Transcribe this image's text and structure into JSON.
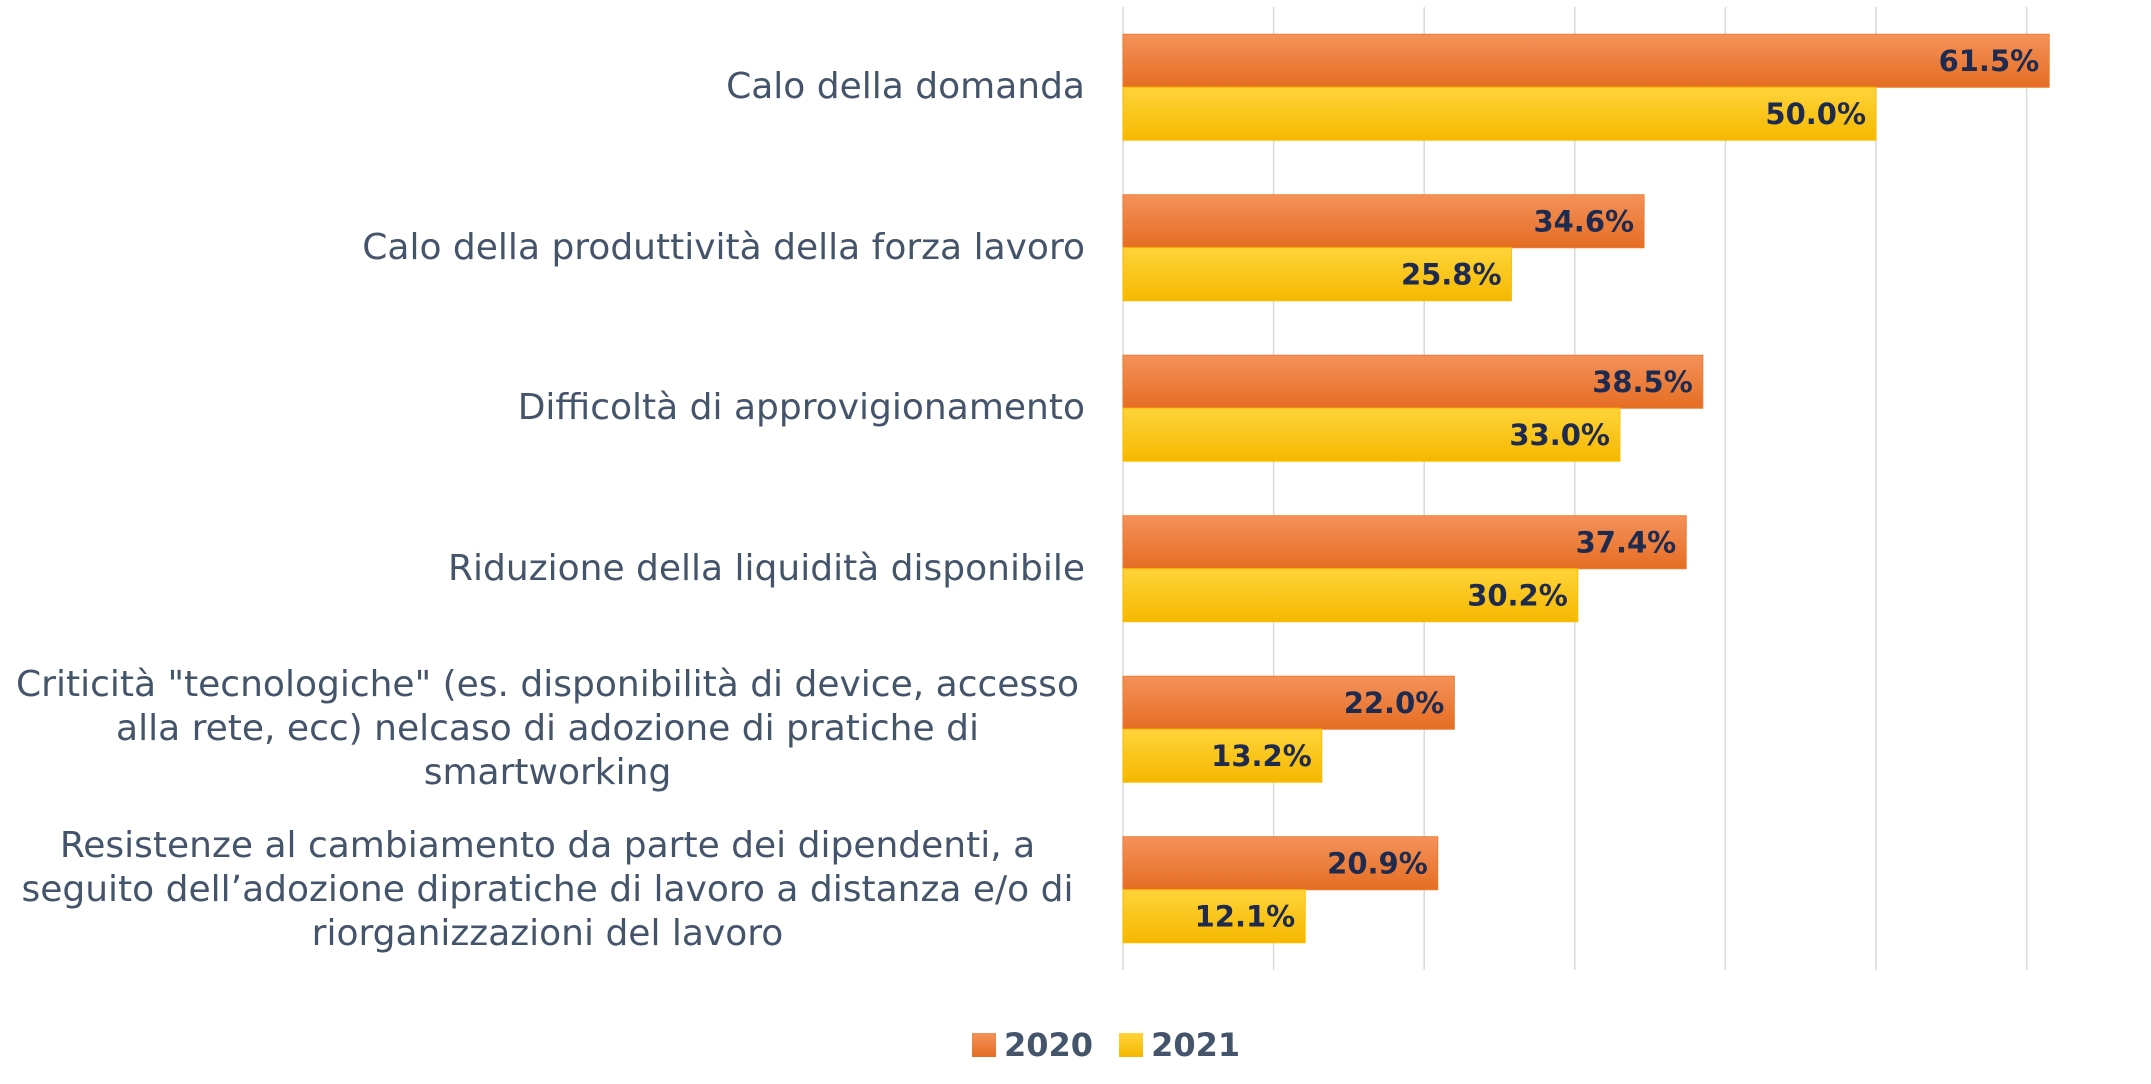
{
  "chart_data": {
    "type": "bar",
    "orientation": "horizontal",
    "categories": [
      "Calo della domanda",
      "Calo della produttività della forza lavoro",
      "Difficoltà di approvigionamento",
      "Riduzione della liquidità disponibile",
      "Criticità \"tecnologiche\" (es. disponibilità di device, accesso alla rete, ecc) nelcaso di adozione di pratiche di smartworking",
      "Resistenze al cambiamento da parte dei dipendenti, a seguito dell’adozione dipratiche di lavoro a distanza e/o di riorganizzazioni del lavoro"
    ],
    "series": [
      {
        "name": "2020",
        "color": "#ed7d31",
        "values": [
          61.5,
          34.6,
          38.5,
          37.4,
          22.0,
          20.9
        ],
        "value_labels": [
          "61.5%",
          "34.6%",
          "38.5%",
          "37.4%",
          "22.0%",
          "20.9%"
        ]
      },
      {
        "name": "2021",
        "color": "#ffc000",
        "values": [
          50.0,
          25.8,
          33.0,
          30.2,
          13.2,
          12.1
        ],
        "value_labels": [
          "50.0%",
          "25.8%",
          "33.0%",
          "30.2%",
          "13.2%",
          "12.1%"
        ]
      }
    ],
    "xlim": [
      0,
      60
    ],
    "xticks": [
      0,
      10,
      20,
      30,
      40,
      50,
      60
    ],
    "grid": true,
    "legend": "bottom"
  }
}
